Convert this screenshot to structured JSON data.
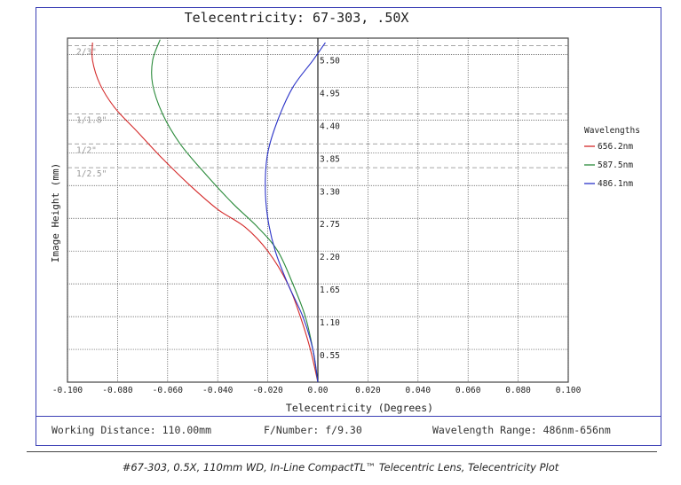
{
  "chart_data": {
    "type": "line",
    "title": "Telecentricity: 67-303, .50X",
    "xlabel": "Telecentricity (Degrees)",
    "ylabel": "Image Height (mm)",
    "xlim": [
      -0.1,
      0.1
    ],
    "ylim": [
      0,
      5.775
    ],
    "x_ticks": [
      "-0.100",
      "-0.080",
      "-0.060",
      "-0.040",
      "-0.020",
      "0.00",
      "0.020",
      "0.040",
      "0.060",
      "0.080",
      "0.100"
    ],
    "y_ticks": [
      "0.55",
      "1.10",
      "1.65",
      "2.20",
      "2.75",
      "3.30",
      "3.85",
      "4.40",
      "4.95",
      "5.50"
    ],
    "grid": true,
    "legend_title": "Wavelengths",
    "legend_position": "right",
    "series": [
      {
        "name": "656.2nm",
        "color": "#d42a2a",
        "x": [
          0,
          -0.003,
          -0.007,
          -0.012,
          -0.02,
          -0.029,
          -0.04,
          -0.051,
          -0.062,
          -0.072,
          -0.081,
          -0.087,
          -0.09,
          -0.09
        ],
        "y": [
          0,
          0.55,
          1.1,
          1.65,
          2.2,
          2.6,
          2.9,
          3.3,
          3.75,
          4.2,
          4.6,
          5.0,
          5.4,
          5.7
        ]
      },
      {
        "name": "587.5nm",
        "color": "#2a8a3a",
        "x": [
          0,
          -0.002,
          -0.005,
          -0.01,
          -0.016,
          -0.024,
          -0.034,
          -0.045,
          -0.055,
          -0.062,
          -0.066,
          -0.066,
          -0.063
        ],
        "y": [
          0,
          0.55,
          1.1,
          1.65,
          2.2,
          2.6,
          3.0,
          3.5,
          4.0,
          4.5,
          5.0,
          5.4,
          5.75
        ]
      },
      {
        "name": "486.1nm",
        "color": "#2a32c8",
        "x": [
          0,
          -0.002,
          -0.006,
          -0.012,
          -0.017,
          -0.02,
          -0.021,
          -0.02,
          -0.016,
          -0.01,
          -0.002,
          0.003
        ],
        "y": [
          0,
          0.55,
          1.1,
          1.65,
          2.2,
          2.75,
          3.3,
          3.85,
          4.4,
          4.95,
          5.4,
          5.7
        ]
      }
    ],
    "annotations": [
      {
        "label": "2/3\"",
        "y": 5.65
      },
      {
        "label": "1/1.8\"",
        "y": 4.5
      },
      {
        "label": "1/2\"",
        "y": 4.0
      },
      {
        "label": "1/2.5\"",
        "y": 3.6
      }
    ]
  },
  "footer": {
    "working_distance": "Working Distance: 110.00mm",
    "f_number": "F/Number: f/9.30",
    "wavelength_range": "Wavelength Range: 486nm-656nm"
  },
  "caption": "#67-303, 0.5X, 110mm WD, In-Line CompactTL™ Telecentric Lens, Telecentricity Plot"
}
